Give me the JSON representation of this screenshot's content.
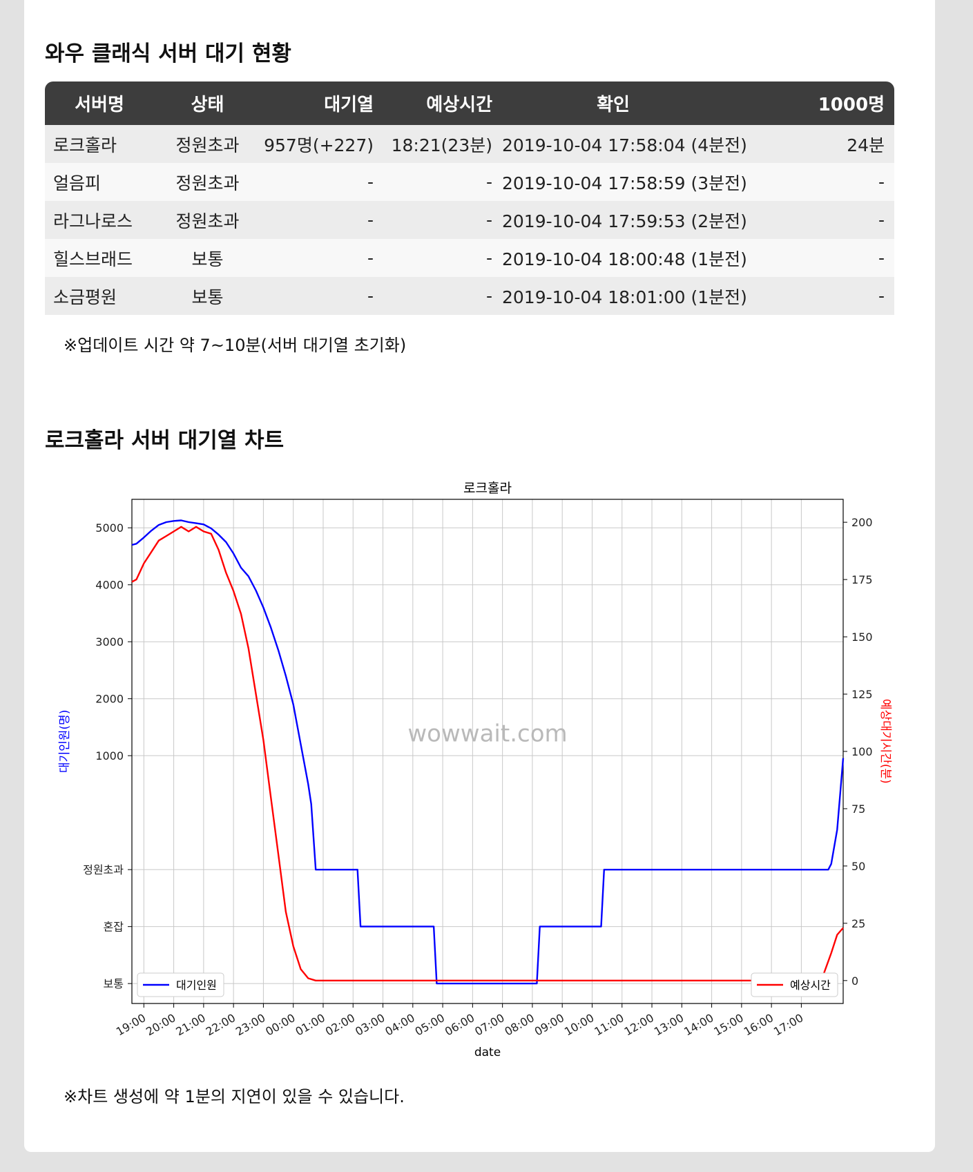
{
  "queue_section": {
    "title": "와우 클래식 서버 대기 현황",
    "columns": [
      "서버명",
      "상태",
      "대기열",
      "예상시간",
      "확인",
      "1000명"
    ],
    "rows": [
      {
        "server": "로크홀라",
        "status": "정원초과",
        "queue": "957명(+227)",
        "eta": "18:21(23분)",
        "checked": "2019-10-04 17:58:04 (4분전)",
        "per1000": "24분"
      },
      {
        "server": "얼음피",
        "status": "정원초과",
        "queue": "-",
        "eta": "-",
        "checked": "2019-10-04 17:58:59 (3분전)",
        "per1000": "-"
      },
      {
        "server": "라그나로스",
        "status": "정원초과",
        "queue": "-",
        "eta": "-",
        "checked": "2019-10-04 17:59:53 (2분전)",
        "per1000": "-"
      },
      {
        "server": "힐스브래드",
        "status": "보통",
        "queue": "-",
        "eta": "-",
        "checked": "2019-10-04 18:00:48 (1분전)",
        "per1000": "-"
      },
      {
        "server": "소금평원",
        "status": "보통",
        "queue": "-",
        "eta": "-",
        "checked": "2019-10-04 18:01:00 (1분전)",
        "per1000": "-"
      }
    ],
    "note": "※업데이트 시간 약 7~10분(서버 대기열 초기화)"
  },
  "chart_section": {
    "title": "로크홀라 서버 대기열 차트",
    "note": "※차트 생성에 약 1분의 지연이 있을 수 있습니다."
  },
  "chart_data": {
    "type": "line",
    "title": "로크홀라",
    "xlabel": "date",
    "ylabel_left": "대기인원(명)",
    "ylabel_right": "예상대기시간(분)",
    "watermark": "wowwait.com",
    "grid": true,
    "x_ticks": [
      "19:00",
      "20:00",
      "21:00",
      "22:00",
      "23:00",
      "00:00",
      "01:00",
      "02:00",
      "03:00",
      "04:00",
      "05:00",
      "06:00",
      "07:00",
      "08:00",
      "09:00",
      "10:00",
      "11:00",
      "12:00",
      "13:00",
      "14:00",
      "15:00",
      "16:00",
      "17:00"
    ],
    "x_range_hours": [
      18.6,
      42.4
    ],
    "y_left": {
      "ticks": [
        {
          "value": -3000,
          "label": "보통"
        },
        {
          "value": -2000,
          "label": "혼잡"
        },
        {
          "value": -1000,
          "label": "정원초과"
        },
        {
          "value": 1000,
          "label": "1000"
        },
        {
          "value": 2000,
          "label": "2000"
        },
        {
          "value": 3000,
          "label": "3000"
        },
        {
          "value": 4000,
          "label": "4000"
        },
        {
          "value": 5000,
          "label": "5000"
        }
      ],
      "range": [
        -3350,
        5500
      ],
      "note": "대기열 없음 상태: 정원초과=-1000, 혼잡=-2000, 보통=-3000"
    },
    "y_right": {
      "ticks": [
        0,
        25,
        50,
        75,
        100,
        125,
        150,
        175,
        200
      ],
      "range": [
        -10,
        210
      ]
    },
    "series": [
      {
        "name": "대기인원",
        "color": "#0000ff",
        "axis": "left",
        "x": [
          18.6,
          18.75,
          19.0,
          19.25,
          19.5,
          19.75,
          20.0,
          20.25,
          20.5,
          20.75,
          21.0,
          21.25,
          21.5,
          21.75,
          22.0,
          22.25,
          22.5,
          22.75,
          23.0,
          23.25,
          23.5,
          23.75,
          24.0,
          24.25,
          24.5,
          24.6,
          24.75,
          25.0,
          25.5,
          26.0,
          26.15,
          26.25,
          26.5,
          27.0,
          27.5,
          28.0,
          28.5,
          28.7,
          28.8,
          29.0,
          29.5,
          30.0,
          30.5,
          31.0,
          31.5,
          32.0,
          32.15,
          32.25,
          32.5,
          33.0,
          33.5,
          34.0,
          34.3,
          34.4,
          34.5,
          35.0,
          36.0,
          37.0,
          38.0,
          39.0,
          40.0,
          41.0,
          41.9,
          42.0,
          42.2,
          42.4
        ],
        "values": [
          4700,
          4720,
          4830,
          4950,
          5050,
          5100,
          5120,
          5130,
          5100,
          5080,
          5060,
          4990,
          4880,
          4750,
          4550,
          4300,
          4150,
          3900,
          3600,
          3250,
          2850,
          2400,
          1900,
          1200,
          500,
          150,
          -1000,
          -1000,
          -1000,
          -1000,
          -1000,
          -2000,
          -2000,
          -2000,
          -2000,
          -2000,
          -2000,
          -2000,
          -3000,
          -3000,
          -3000,
          -3000,
          -3000,
          -3000,
          -3000,
          -3000,
          -3000,
          -2000,
          -2000,
          -2000,
          -2000,
          -2000,
          -2000,
          -1000,
          -1000,
          -1000,
          -1000,
          -1000,
          -1000,
          -1000,
          -1000,
          -1000,
          -1000,
          -900,
          -300,
          957
        ]
      },
      {
        "name": "예상시간",
        "color": "#ff0000",
        "axis": "right",
        "x": [
          18.6,
          18.75,
          19.0,
          19.25,
          19.5,
          19.75,
          20.0,
          20.25,
          20.5,
          20.75,
          21.0,
          21.25,
          21.5,
          21.75,
          22.0,
          22.25,
          22.5,
          22.75,
          23.0,
          23.25,
          23.5,
          23.75,
          24.0,
          24.25,
          24.5,
          24.75,
          25.0,
          25.5,
          26.0,
          27.0,
          28.0,
          29.0,
          30.0,
          31.0,
          32.0,
          33.0,
          34.0,
          35.0,
          36.0,
          37.0,
          38.0,
          39.0,
          40.0,
          41.0,
          41.5,
          41.75,
          42.0,
          42.2,
          42.4
        ],
        "values": [
          174,
          175,
          182,
          187,
          192,
          194,
          196,
          198,
          196,
          198,
          196,
          195,
          188,
          178,
          170,
          160,
          145,
          125,
          105,
          80,
          55,
          30,
          15,
          5,
          1,
          0,
          0,
          0,
          0,
          0,
          0,
          0,
          0,
          0,
          0,
          0,
          0,
          0,
          0,
          0,
          0,
          0,
          0,
          0,
          0,
          3,
          12,
          20,
          23
        ]
      }
    ],
    "legend": [
      {
        "label": "대기인원",
        "position": "lower-left"
      },
      {
        "label": "예상시간",
        "position": "lower-right"
      }
    ]
  }
}
